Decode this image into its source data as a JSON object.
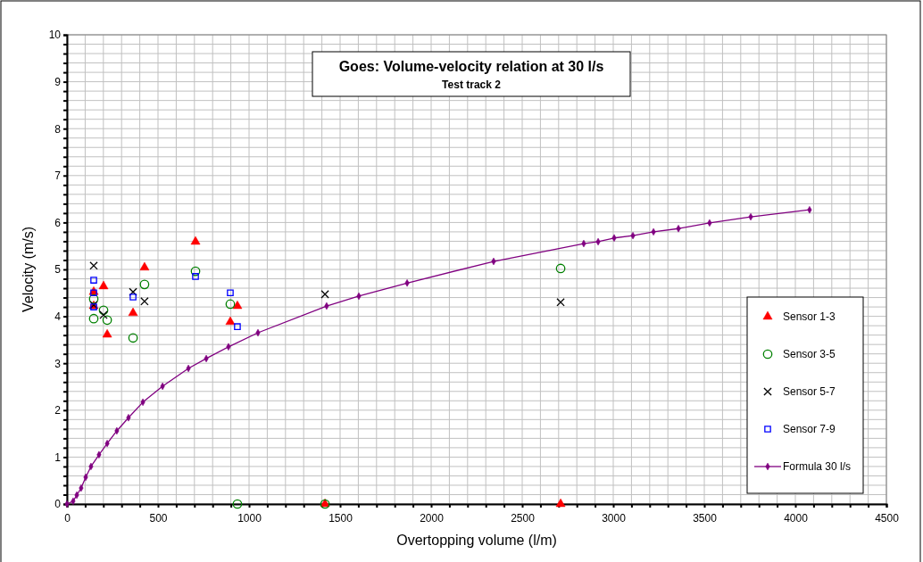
{
  "chart_data": {
    "type": "scatter",
    "title": "Goes: Volume-velocity relation at 30 l/s",
    "subtitle": "Test track 2",
    "xlabel": "Overtopping volume (l/m)",
    "ylabel": "Velocity (m/s)",
    "xlim": [
      0,
      4500
    ],
    "ylim": [
      0,
      10
    ],
    "xticks": [
      0,
      {
        "value": 100,
        "label": null
      },
      {
        "value": 200,
        "label": null
      },
      {
        "value": 300,
        "label": null
      },
      {
        "value": 400,
        "label": null
      },
      500,
      {
        "value": 600,
        "label": null
      },
      {
        "value": 700,
        "label": null
      },
      {
        "value": 800,
        "label": null
      },
      {
        "value": 900,
        "label": null
      },
      1000,
      {
        "value": 1100,
        "label": null
      },
      {
        "value": 1200,
        "label": null
      },
      {
        "value": 1300,
        "label": null
      },
      {
        "value": 1400,
        "label": null
      },
      1500,
      {
        "value": 1600,
        "label": null
      },
      {
        "value": 1700,
        "label": null
      },
      {
        "value": 1800,
        "label": null
      },
      {
        "value": 1900,
        "label": null
      },
      2000,
      {
        "value": 2100,
        "label": null
      },
      {
        "value": 2200,
        "label": null
      },
      {
        "value": 2300,
        "label": null
      },
      {
        "value": 2400,
        "label": null
      },
      2500,
      {
        "value": 2600,
        "label": null
      },
      {
        "value": 2700,
        "label": null
      },
      {
        "value": 2800,
        "label": null
      },
      {
        "value": 2900,
        "label": null
      },
      3000,
      {
        "value": 3100,
        "label": null
      },
      {
        "value": 3200,
        "label": null
      },
      {
        "value": 3300,
        "label": null
      },
      {
        "value": 3400,
        "label": null
      },
      3500,
      {
        "value": 3600,
        "label": null
      },
      {
        "value": 3700,
        "label": null
      },
      {
        "value": 3800,
        "label": null
      },
      {
        "value": 3900,
        "label": null
      },
      4000,
      {
        "value": 4100,
        "label": null
      },
      {
        "value": 4200,
        "label": null
      },
      {
        "value": 4300,
        "label": null
      },
      {
        "value": 4400,
        "label": null
      },
      4500
    ],
    "yticks": [
      0,
      {
        "value": 0.2,
        "label": null
      },
      {
        "value": 0.4,
        "label": null
      },
      {
        "value": 0.6,
        "label": null
      },
      {
        "value": 0.8,
        "label": null
      },
      1,
      {
        "value": 1.2,
        "label": null
      },
      {
        "value": 1.4,
        "label": null
      },
      {
        "value": 1.6,
        "label": null
      },
      {
        "value": 1.8,
        "label": null
      },
      2,
      {
        "value": 2.2,
        "label": null
      },
      {
        "value": 2.4,
        "label": null
      },
      {
        "value": 2.6,
        "label": null
      },
      {
        "value": 2.8,
        "label": null
      },
      3,
      {
        "value": 3.2,
        "label": null
      },
      {
        "value": 3.4,
        "label": null
      },
      {
        "value": 3.6,
        "label": null
      },
      {
        "value": 3.8,
        "label": null
      },
      4,
      {
        "value": 4.2,
        "label": null
      },
      {
        "value": 4.4,
        "label": null
      },
      {
        "value": 4.6,
        "label": null
      },
      {
        "value": 4.8,
        "label": null
      },
      5,
      {
        "value": 5.2,
        "label": null
      },
      {
        "value": 5.4,
        "label": null
      },
      {
        "value": 5.6,
        "label": null
      },
      {
        "value": 5.8,
        "label": null
      },
      6,
      {
        "value": 6.2,
        "label": null
      },
      {
        "value": 6.4,
        "label": null
      },
      {
        "value": 6.6,
        "label": null
      },
      {
        "value": 6.8,
        "label": null
      },
      7,
      {
        "value": 7.2,
        "label": null
      },
      {
        "value": 7.4,
        "label": null
      },
      {
        "value": 7.6,
        "label": null
      },
      {
        "value": 7.8,
        "label": null
      },
      8,
      {
        "value": 8.2,
        "label": null
      },
      {
        "value": 8.4,
        "label": null
      },
      {
        "value": 8.6,
        "label": null
      },
      {
        "value": 8.8,
        "label": null
      },
      9,
      {
        "value": 9.2,
        "label": null
      },
      {
        "value": 9.4,
        "label": null
      },
      {
        "value": 9.6,
        "label": null
      },
      {
        "value": 9.8,
        "label": null
      },
      10
    ],
    "grid": true,
    "legend": "bottom right",
    "series": [
      {
        "name": "Sensor 1-3",
        "marker": "triangle",
        "color": "#ff0000",
        "x": [
          147,
          201,
          147,
          221,
          363,
          426,
          706,
          897,
          936,
          1417,
          2711
        ],
        "values": [
          4.52,
          4.64,
          4.22,
          3.61,
          4.07,
          5.04,
          5.59,
          3.88,
          4.22,
          0,
          0
        ]
      },
      {
        "name": "Sensor 3-5",
        "marker": "circle",
        "color": "#008000",
        "x": [
          147,
          147,
          201,
          221,
          363,
          426,
          706,
          897,
          936,
          1417,
          2711
        ],
        "values": [
          3.95,
          4.37,
          4.13,
          3.92,
          3.54,
          4.68,
          4.96,
          4.26,
          0,
          0,
          5.02
        ]
      },
      {
        "name": "Sensor 5-7",
        "marker": "cross",
        "color": "#000000",
        "x": [
          147,
          147,
          201,
          363,
          426,
          1417,
          2711
        ],
        "values": [
          5.08,
          4.24,
          4.03,
          4.52,
          4.32,
          4.47,
          4.3
        ]
      },
      {
        "name": "Sensor 7-9",
        "marker": "square",
        "color": "#0000ff",
        "x": [
          147,
          147,
          147,
          363,
          706,
          897,
          936
        ],
        "values": [
          4.77,
          4.5,
          4.2,
          4.41,
          4.85,
          4.5,
          3.78
        ]
      },
      {
        "name": "Formula 30 l/s",
        "type": "line",
        "marker": "diamond",
        "line_style": "solid",
        "color": "#800080",
        "x": [
          0,
          34,
          54,
          78,
          103,
          132,
          176,
          221,
          274,
          338,
          417,
          525,
          667,
          765,
          887,
          1049,
          1426,
          1603,
          1868,
          2343,
          2838,
          2917,
          3005,
          3108,
          3221,
          3358,
          3529,
          3755,
          4078
        ],
        "values": [
          0,
          0.06,
          0.19,
          0.34,
          0.57,
          0.8,
          1.05,
          1.29,
          1.56,
          1.84,
          2.17,
          2.51,
          2.89,
          3.1,
          3.35,
          3.65,
          4.22,
          4.43,
          4.71,
          5.17,
          5.55,
          5.59,
          5.67,
          5.72,
          5.8,
          5.87,
          5.99,
          6.12,
          6.27
        ]
      }
    ]
  }
}
